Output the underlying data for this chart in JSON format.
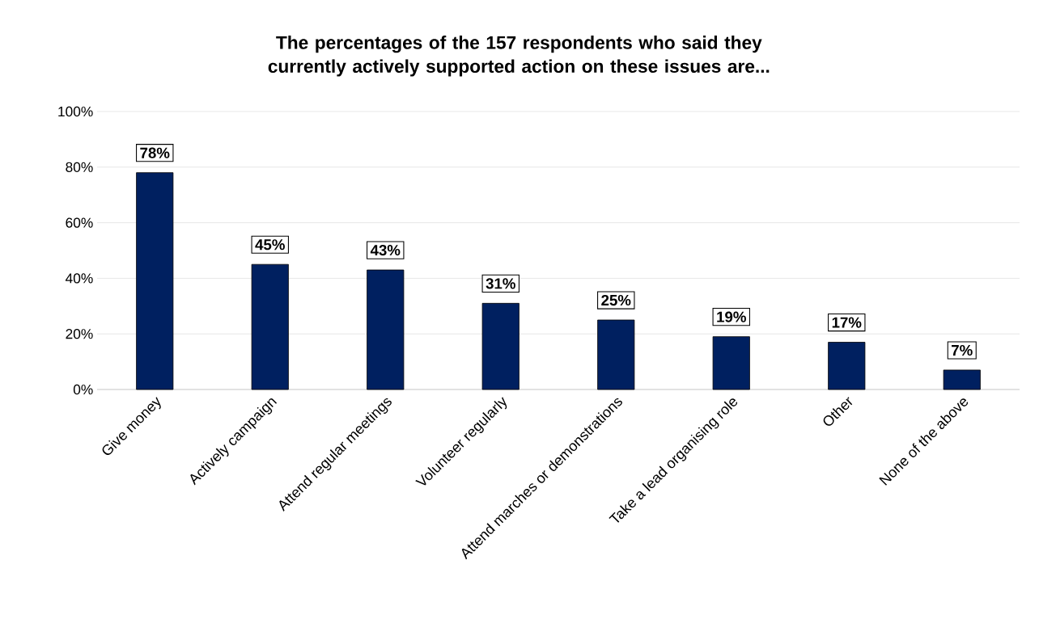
{
  "chart_data": {
    "type": "bar",
    "title": "The percentages of the 157 respondents who said they currently actively supported action on these issues are...",
    "categories": [
      "Give money",
      "Actively campaign",
      "Attend regular meetings",
      "Volunteer regularly",
      "Attend marches or demonstrations",
      "Take a lead organising role",
      "Other",
      "None of the above"
    ],
    "values": [
      78,
      45,
      43,
      31,
      25,
      19,
      17,
      7
    ],
    "value_labels": [
      "78%",
      "45%",
      "43%",
      "31%",
      "25%",
      "19%",
      "17%",
      "7%"
    ],
    "color": "#002060",
    "ylim": [
      0,
      100
    ],
    "yticks": [
      {
        "value": 0,
        "label": "0%"
      },
      {
        "value": 20,
        "label": "20%"
      },
      {
        "value": 40,
        "label": "40%"
      },
      {
        "value": 60,
        "label": "60%"
      },
      {
        "value": 80,
        "label": "80%"
      },
      {
        "value": 100,
        "label": "100%"
      }
    ],
    "grid": "y"
  }
}
